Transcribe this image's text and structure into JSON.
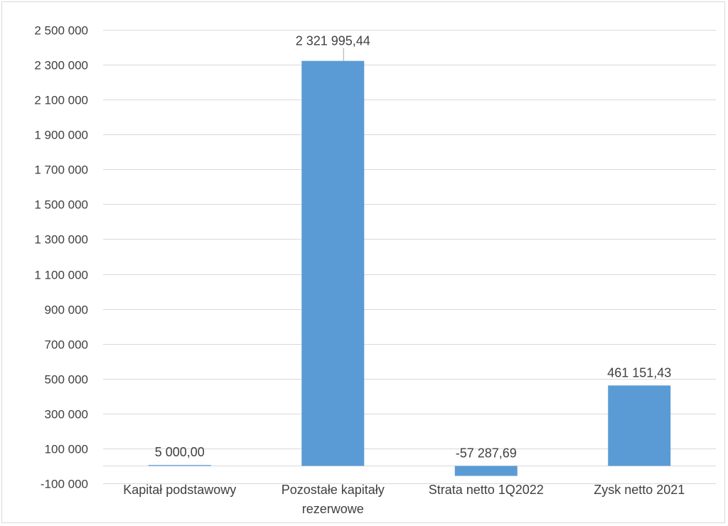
{
  "chart_data": {
    "type": "bar",
    "title": "",
    "xlabel": "",
    "ylabel": "",
    "categories": [
      [
        "Kapitał podstawowy"
      ],
      [
        "Pozostałe kapitały",
        "rezerwowe"
      ],
      [
        "Strata netto 1Q2022"
      ],
      [
        "Zysk netto 2021"
      ]
    ],
    "values": [
      5000.0,
      2321995.44,
      -57287.69,
      461151.43
    ],
    "data_labels": [
      "5 000,00",
      "2 321 995,44",
      "-57 287,69",
      "461 151,43"
    ],
    "ylim": [
      -100000,
      2500000
    ],
    "yticks": [
      -100000,
      100000,
      300000,
      500000,
      700000,
      900000,
      1100000,
      1300000,
      1500000,
      1700000,
      1900000,
      2100000,
      2300000,
      2500000
    ],
    "ytick_labels": [
      "-100 000",
      "100 000",
      "300 000",
      "500 000",
      "700 000",
      "900 000",
      "1 100 000",
      "1 300 000",
      "1 500 000",
      "1 700 000",
      "1 900 000",
      "2 100 000",
      "2 300 000",
      "2 500 000"
    ],
    "grid": true,
    "legend": "none",
    "bar_color": "#5b9bd5",
    "grid_color": "#d9d9d9",
    "text_color": "#404040"
  }
}
